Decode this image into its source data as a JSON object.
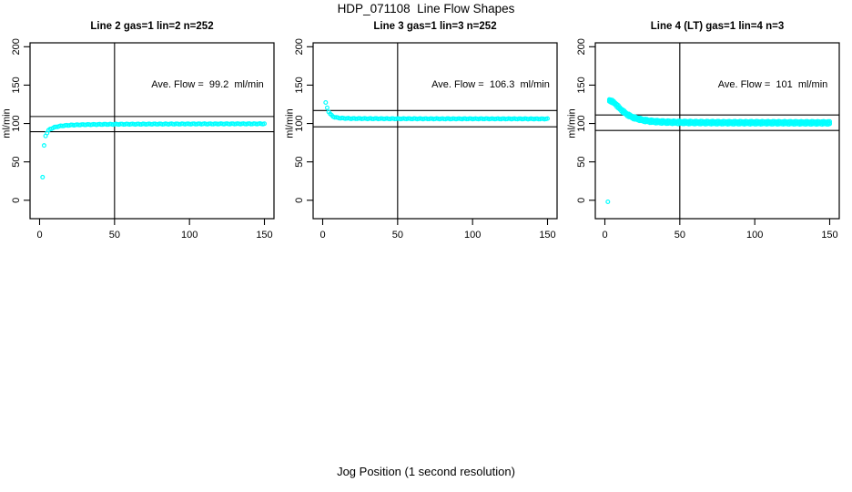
{
  "main_title": "HDP_071108  Line Flow Shapes",
  "x_axis_title": "Jog Position (1 second resolution)",
  "colors": {
    "points": "#00ffff",
    "axis": "#000000",
    "background": "#ffffff"
  },
  "chart_data": [
    {
      "type": "scatter",
      "title": "Line 2 gas=1 lin=2 n=252",
      "annotation": "Ave. Flow =  99.2  ml/min",
      "ave_flow_ml_min": 99.2,
      "ylabel": "ml/min",
      "x_ticks": [
        0,
        50,
        100,
        150
      ],
      "y_ticks": [
        0,
        50,
        100,
        150,
        200
      ],
      "xlim": [
        0,
        155
      ],
      "ylim": [
        -25,
        207
      ],
      "vline_x": 50,
      "hlines": [
        109.1,
        89.3
      ],
      "overplot_runs": 1,
      "points": [
        [
          2,
          30
        ],
        [
          3,
          71
        ],
        [
          4,
          84
        ],
        [
          5,
          88
        ],
        [
          6,
          91
        ],
        [
          7,
          92.5
        ],
        [
          8,
          93.5
        ],
        [
          9,
          94.3
        ],
        [
          10,
          95
        ],
        [
          12,
          96
        ],
        [
          15,
          97
        ],
        [
          20,
          97.8
        ],
        [
          25,
          98.2
        ],
        [
          30,
          98.5
        ],
        [
          40,
          98.8
        ],
        [
          50,
          99
        ],
        [
          60,
          99.1
        ],
        [
          80,
          99.3
        ],
        [
          100,
          99.4
        ],
        [
          120,
          99.5
        ],
        [
          150,
          99.6
        ]
      ],
      "outliers": []
    },
    {
      "type": "scatter",
      "title": "Line 3 gas=1 lin=3 n=252",
      "annotation": "Ave. Flow =  106.3  ml/min",
      "ave_flow_ml_min": 106.3,
      "ylabel": "ml/min",
      "x_ticks": [
        0,
        50,
        100,
        150
      ],
      "y_ticks": [
        0,
        50,
        100,
        150,
        200
      ],
      "xlim": [
        0,
        155
      ],
      "ylim": [
        -25,
        207
      ],
      "vline_x": 50,
      "hlines": [
        116.9,
        95.7
      ],
      "overplot_runs": 1,
      "points": [
        [
          2,
          127
        ],
        [
          3,
          120.5
        ],
        [
          4,
          115.5
        ],
        [
          5,
          112.5
        ],
        [
          6,
          110.5
        ],
        [
          7,
          109
        ],
        [
          8,
          108.3
        ],
        [
          10,
          107.4
        ],
        [
          12,
          107
        ],
        [
          15,
          106.7
        ],
        [
          20,
          106.4
        ],
        [
          30,
          106.3
        ],
        [
          50,
          106.2
        ],
        [
          80,
          106.1
        ],
        [
          100,
          106.1
        ],
        [
          150,
          106
        ]
      ],
      "outliers": []
    },
    {
      "type": "scatter",
      "title": "Line 4 (LT) gas=1 lin=4 n=3",
      "annotation": "Ave. Flow =  101  ml/min",
      "ave_flow_ml_min": 101,
      "ylabel": "ml/min",
      "x_ticks": [
        0,
        50,
        100,
        150
      ],
      "y_ticks": [
        0,
        50,
        100,
        150,
        200
      ],
      "xlim": [
        0,
        155
      ],
      "ylim": [
        -25,
        207
      ],
      "vline_x": 50,
      "hlines": [
        111.1,
        90.9
      ],
      "overplot_runs": 3,
      "points": [
        [
          3,
          130
        ],
        [
          4,
          129.5
        ],
        [
          5,
          128.5
        ],
        [
          6,
          127
        ],
        [
          7,
          125.5
        ],
        [
          8,
          123.5
        ],
        [
          10,
          119.5
        ],
        [
          12,
          116
        ],
        [
          15,
          111.5
        ],
        [
          18,
          108.5
        ],
        [
          20,
          107
        ],
        [
          25,
          104.5
        ],
        [
          30,
          103
        ],
        [
          35,
          102.3
        ],
        [
          40,
          101.8
        ],
        [
          50,
          101.4
        ],
        [
          60,
          101.2
        ],
        [
          80,
          101
        ],
        [
          100,
          101
        ],
        [
          120,
          100.9
        ],
        [
          150,
          100.8
        ]
      ],
      "outliers": [
        [
          2,
          -2
        ]
      ]
    }
  ]
}
